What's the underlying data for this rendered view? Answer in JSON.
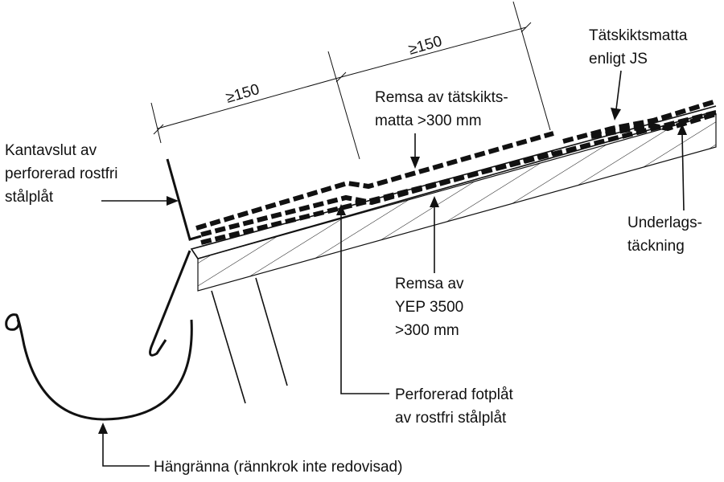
{
  "dimensions": {
    "left": "≥150",
    "right": "≥150"
  },
  "labels": {
    "kantavslut": [
      "Kantavslut av",
      "perforerad rostfri",
      "stålplåt"
    ],
    "tatskiktsmatta": [
      "Tätskiktsmatta",
      "enligt JS"
    ],
    "remsa_tatskikt": [
      "Remsa av tätskikts-",
      "matta >300 mm"
    ],
    "underlag": [
      "Underlags-",
      "täckning"
    ],
    "remsa_yep": [
      "Remsa av",
      "YEP 3500",
      ">300 mm"
    ],
    "fotplat": [
      "Perforerad fotplåt",
      "av rostfri stålplåt"
    ],
    "hangranna": "Hängränna (rännkrok inte redovisad)"
  }
}
